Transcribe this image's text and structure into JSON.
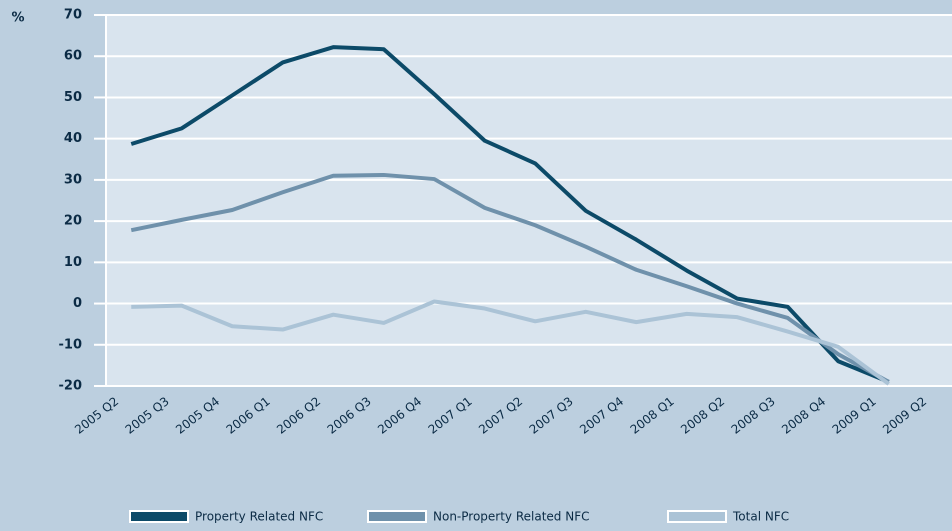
{
  "chart_data": {
    "type": "line",
    "y_label": "%",
    "categories": [
      "2005 Q2",
      "2005 Q3",
      "2005 Q4",
      "2006 Q1",
      "2006 Q2",
      "2006 Q3",
      "2006 Q4",
      "2007 Q1",
      "2007 Q2",
      "2007 Q3",
      "2007 Q4",
      "2008 Q1",
      "2008 Q2",
      "2008 Q3",
      "2008 Q4",
      "2009 Q1",
      "2009 Q2"
    ],
    "series": [
      {
        "name": "Property Related NFC",
        "color": "#0c4a68",
        "values": [
          38.7,
          42.5,
          50.5,
          58.5,
          62.2,
          61.7,
          50.8,
          39.5,
          34,
          22.5,
          15.5,
          8,
          1.2,
          -0.8,
          -14,
          -19,
          null
        ]
      },
      {
        "name": "Non-Property Related NFC",
        "color": "#6f91ab",
        "values": [
          17.8,
          20.3,
          22.7,
          27,
          31,
          31.2,
          30.2,
          23.2,
          19,
          13.8,
          8.2,
          4.2,
          0,
          -3.5,
          -12.3,
          -19,
          null
        ]
      },
      {
        "name": "Total NFC",
        "color": "#abc3d6",
        "values": [
          -0.8,
          -0.5,
          -5.5,
          -6.3,
          -2.7,
          -4.7,
          0.5,
          -1.2,
          -4.3,
          -2,
          -4.5,
          -2.5,
          -3.3,
          -6.8,
          -10.5,
          -19.5,
          null
        ]
      }
    ],
    "ylim": [
      -20,
      70
    ],
    "yticks": [
      -20,
      -10,
      0,
      10,
      20,
      30,
      40,
      50,
      60,
      70
    ],
    "grid": true
  }
}
